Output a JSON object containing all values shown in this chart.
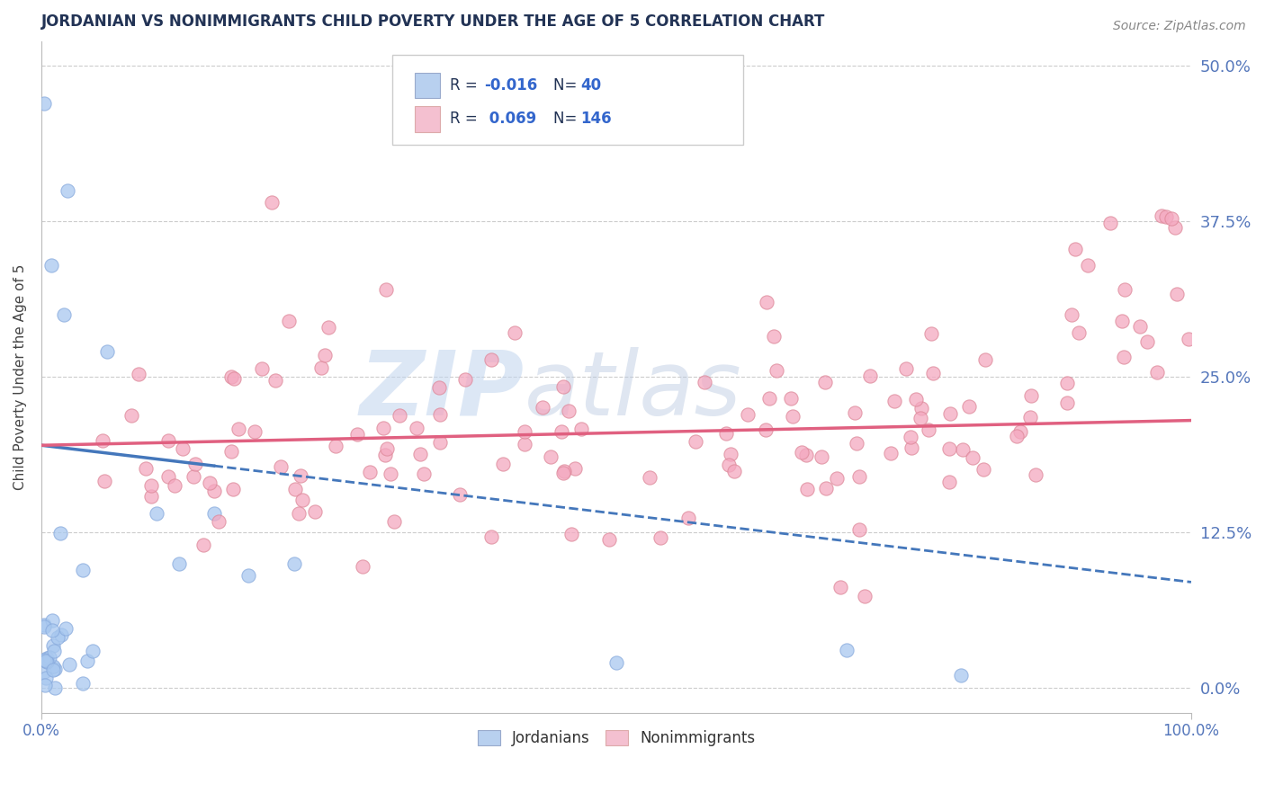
{
  "title": "JORDANIAN VS NONIMMIGRANTS CHILD POVERTY UNDER THE AGE OF 5 CORRELATION CHART",
  "source": "Source: ZipAtlas.com",
  "ylabel": "Child Poverty Under the Age of 5",
  "watermark": "ZIPatlas",
  "jordanian_color": "#a8c8ef",
  "nonimmigrant_color": "#f4a8c0",
  "trend_jordanian_color": "#4477bb",
  "trend_nonimmigrant_color": "#e06080",
  "background_color": "#ffffff",
  "grid_color": "#cccccc",
  "xlim": [
    0,
    100
  ],
  "ylim": [
    -2,
    52
  ],
  "yticks_right": [
    0,
    12.5,
    25,
    37.5,
    50
  ],
  "legend_box": {
    "r1": "-0.016",
    "n1": "40",
    "r2": "0.069",
    "n2": "146"
  },
  "jordanian_trend_y0": 19.5,
  "jordanian_trend_y1": 8.5,
  "nonimmigrant_trend_y0": 19.5,
  "nonimmigrant_trend_y1": 21.5,
  "jord_solid_x_end": 15
}
